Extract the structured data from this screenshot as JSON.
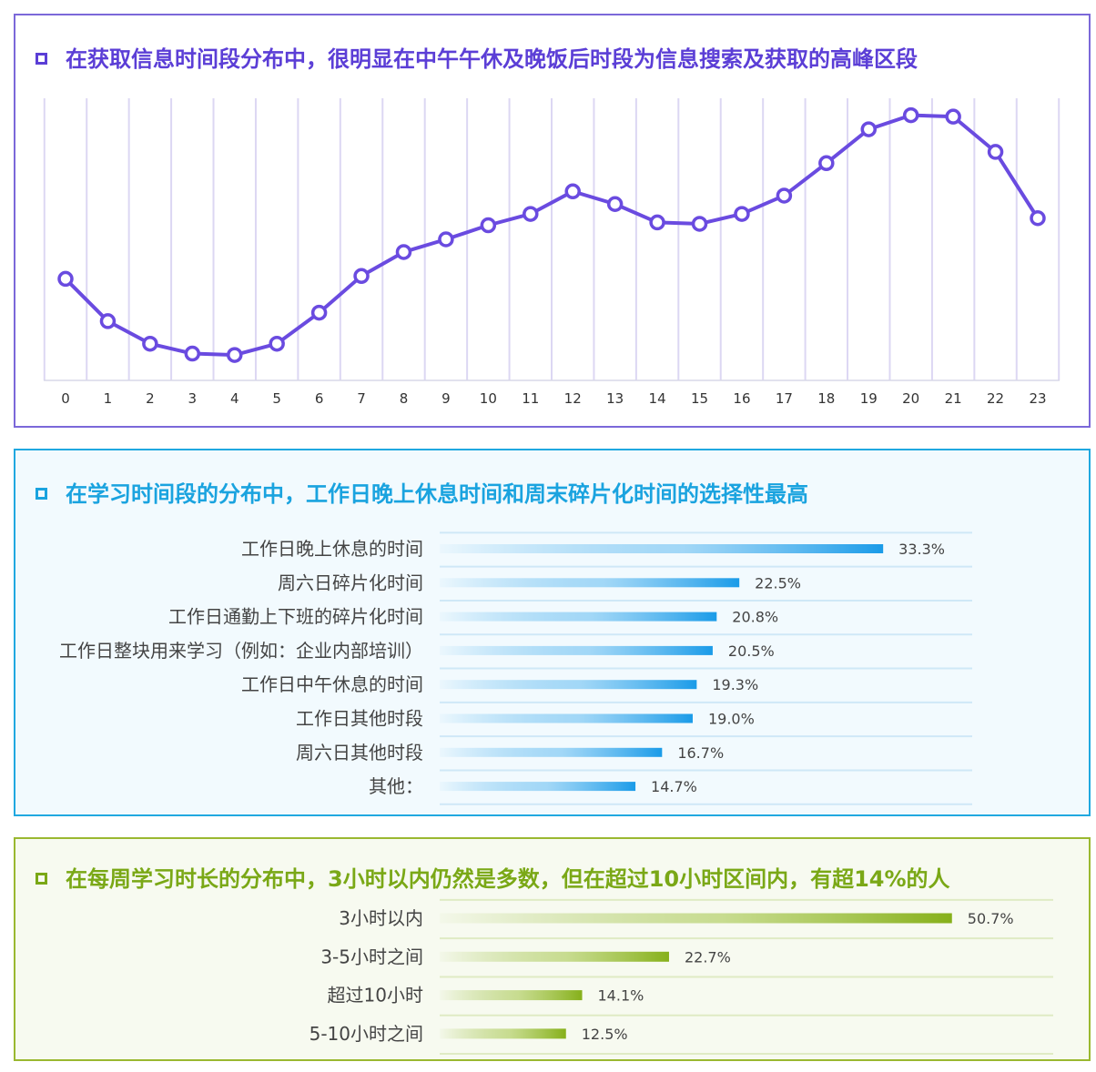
{
  "colors": {
    "purple": "#6a4be0",
    "blue": "#1aa3df",
    "green": "#86b01a",
    "panel1_border": "#7b68d9",
    "panel2_border": "#20a8e0",
    "panel3_border": "#9ab830"
  },
  "panels": [
    {
      "title": "在获取信息时间段分布中，很明显在中午午休及晚饭后时段为信息搜索及获取的高峰区段",
      "icon": "square-bullet-icon"
    },
    {
      "title": "在学习时间段的分布中，工作日晚上休息时间和周末碎片化时间的选择性最高",
      "icon": "square-bullet-icon"
    },
    {
      "title": "在每周学习时长的分布中，3小时以内仍然是多数，但在超过10小时区间内，有超14%的人",
      "icon": "square-bullet-icon"
    }
  ],
  "chart_data": [
    {
      "type": "line",
      "x": [
        "0",
        "1",
        "2",
        "3",
        "4",
        "5",
        "6",
        "7",
        "8",
        "9",
        "10",
        "11",
        "12",
        "13",
        "14",
        "15",
        "16",
        "17",
        "18",
        "19",
        "20",
        "21",
        "22",
        "23"
      ],
      "values": [
        36,
        21,
        13,
        9.5,
        9,
        13,
        24,
        37,
        45.5,
        50,
        55,
        59,
        67,
        62.5,
        56,
        55.5,
        59,
        65.5,
        77,
        89,
        94,
        93.5,
        81,
        57.5
      ],
      "ylim": [
        0,
        100
      ],
      "grid": true
    },
    {
      "type": "bar",
      "orientation": "horizontal",
      "categories": [
        "工作日晚上休息的时间",
        "周六日碎片化时间",
        "工作日通勤上下班的碎片化时间",
        "工作日整块用来学习（例如：企业内部培训）",
        "工作日中午休息的时间",
        "工作日其他时段",
        "周六日其他时段",
        "其他："
      ],
      "values": [
        33.3,
        22.5,
        20.8,
        20.5,
        19.3,
        19.0,
        16.7,
        14.7
      ],
      "labels": [
        "33.3%",
        "22.5%",
        "20.8%",
        "20.5%",
        "19.3%",
        "19.0%",
        "16.7%",
        "14.7%"
      ]
    },
    {
      "type": "bar",
      "orientation": "horizontal",
      "categories": [
        "3小时以内",
        "3-5小时之间",
        "超过10小时",
        "5-10小时之间"
      ],
      "values": [
        50.7,
        22.7,
        14.1,
        12.5
      ],
      "labels": [
        "50.7%",
        "22.7%",
        "14.1%",
        "12.5%"
      ]
    }
  ]
}
